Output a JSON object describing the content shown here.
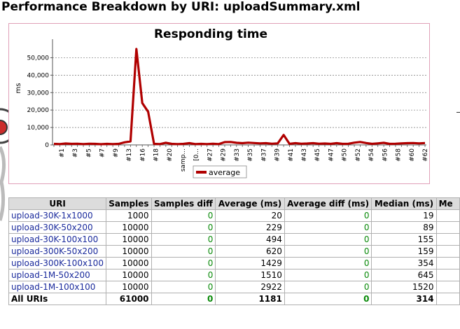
{
  "page": {
    "title": "Performance Breakdown by URI: uploadSummary.xml"
  },
  "colors": {
    "series": "#b00000",
    "uri_link": "#1a2a9c",
    "diff_green": "#0a8a0a",
    "header_bg": "#dcdcdc"
  },
  "chart_data": {
    "type": "line",
    "title": "Responding time",
    "ylabel": "ms",
    "xlabel": "",
    "ylim": [
      0,
      55000
    ],
    "yticks": [
      0,
      10000,
      20000,
      30000,
      40000,
      50000
    ],
    "ytick_labels": [
      "0",
      "10,000",
      "20,000",
      "30,000",
      "40,000",
      "50,000"
    ],
    "grid": true,
    "legend": "bottom-center",
    "x_labels": [
      "#1",
      "#3",
      "#5",
      "#7",
      "#9",
      "#13",
      "#16",
      "#18",
      "#20",
      "samp...",
      "[0...",
      "#27",
      "#29",
      "#33",
      "#35",
      "#37",
      "#39",
      "#41",
      "#43",
      "#45",
      "#47",
      "#50",
      "#52",
      "#54",
      "#56",
      "#58",
      "#60",
      "#62"
    ],
    "series": [
      {
        "name": "average",
        "values": [
          600,
          500,
          800,
          600,
          700,
          500,
          700,
          600,
          400,
          600,
          500,
          600,
          1500,
          2000,
          55000,
          24000,
          19000,
          600,
          500,
          1200,
          600,
          500,
          600,
          1000,
          500,
          600,
          500,
          700,
          500,
          1600,
          1700,
          1200,
          1000,
          1300,
          1100,
          900,
          1000,
          700,
          900,
          5700,
          600,
          1000,
          700,
          800,
          1000,
          700,
          800,
          600,
          1000,
          600,
          700,
          1300,
          1700,
          1100,
          600,
          900,
          1200,
          600,
          700,
          900,
          1000,
          1100,
          900,
          1100
        ]
      }
    ]
  },
  "table": {
    "columns": [
      "URI",
      "Samples",
      "Samples diff",
      "Average (ms)",
      "Average diff (ms)",
      "Median (ms)",
      "Me"
    ],
    "rows": [
      {
        "uri": "upload-30K-1x1000",
        "samples": "1000",
        "samples_diff": "0",
        "average": "20",
        "average_diff": "0",
        "median": "19"
      },
      {
        "uri": "upload-30K-50x200",
        "samples": "10000",
        "samples_diff": "0",
        "average": "229",
        "average_diff": "0",
        "median": "89"
      },
      {
        "uri": "upload-30K-100x100",
        "samples": "10000",
        "samples_diff": "0",
        "average": "494",
        "average_diff": "0",
        "median": "155"
      },
      {
        "uri": "upload-300K-50x200",
        "samples": "10000",
        "samples_diff": "0",
        "average": "620",
        "average_diff": "0",
        "median": "159"
      },
      {
        "uri": "upload-300K-100x100",
        "samples": "10000",
        "samples_diff": "0",
        "average": "1429",
        "average_diff": "0",
        "median": "354"
      },
      {
        "uri": "upload-1M-50x200",
        "samples": "10000",
        "samples_diff": "0",
        "average": "1510",
        "average_diff": "0",
        "median": "645"
      },
      {
        "uri": "upload-1M-100x100",
        "samples": "10000",
        "samples_diff": "0",
        "average": "2922",
        "average_diff": "0",
        "median": "1520"
      }
    ],
    "total": {
      "uri": "All URIs",
      "samples": "61000",
      "samples_diff": "0",
      "average": "1181",
      "average_diff": "0",
      "median": "314"
    }
  }
}
